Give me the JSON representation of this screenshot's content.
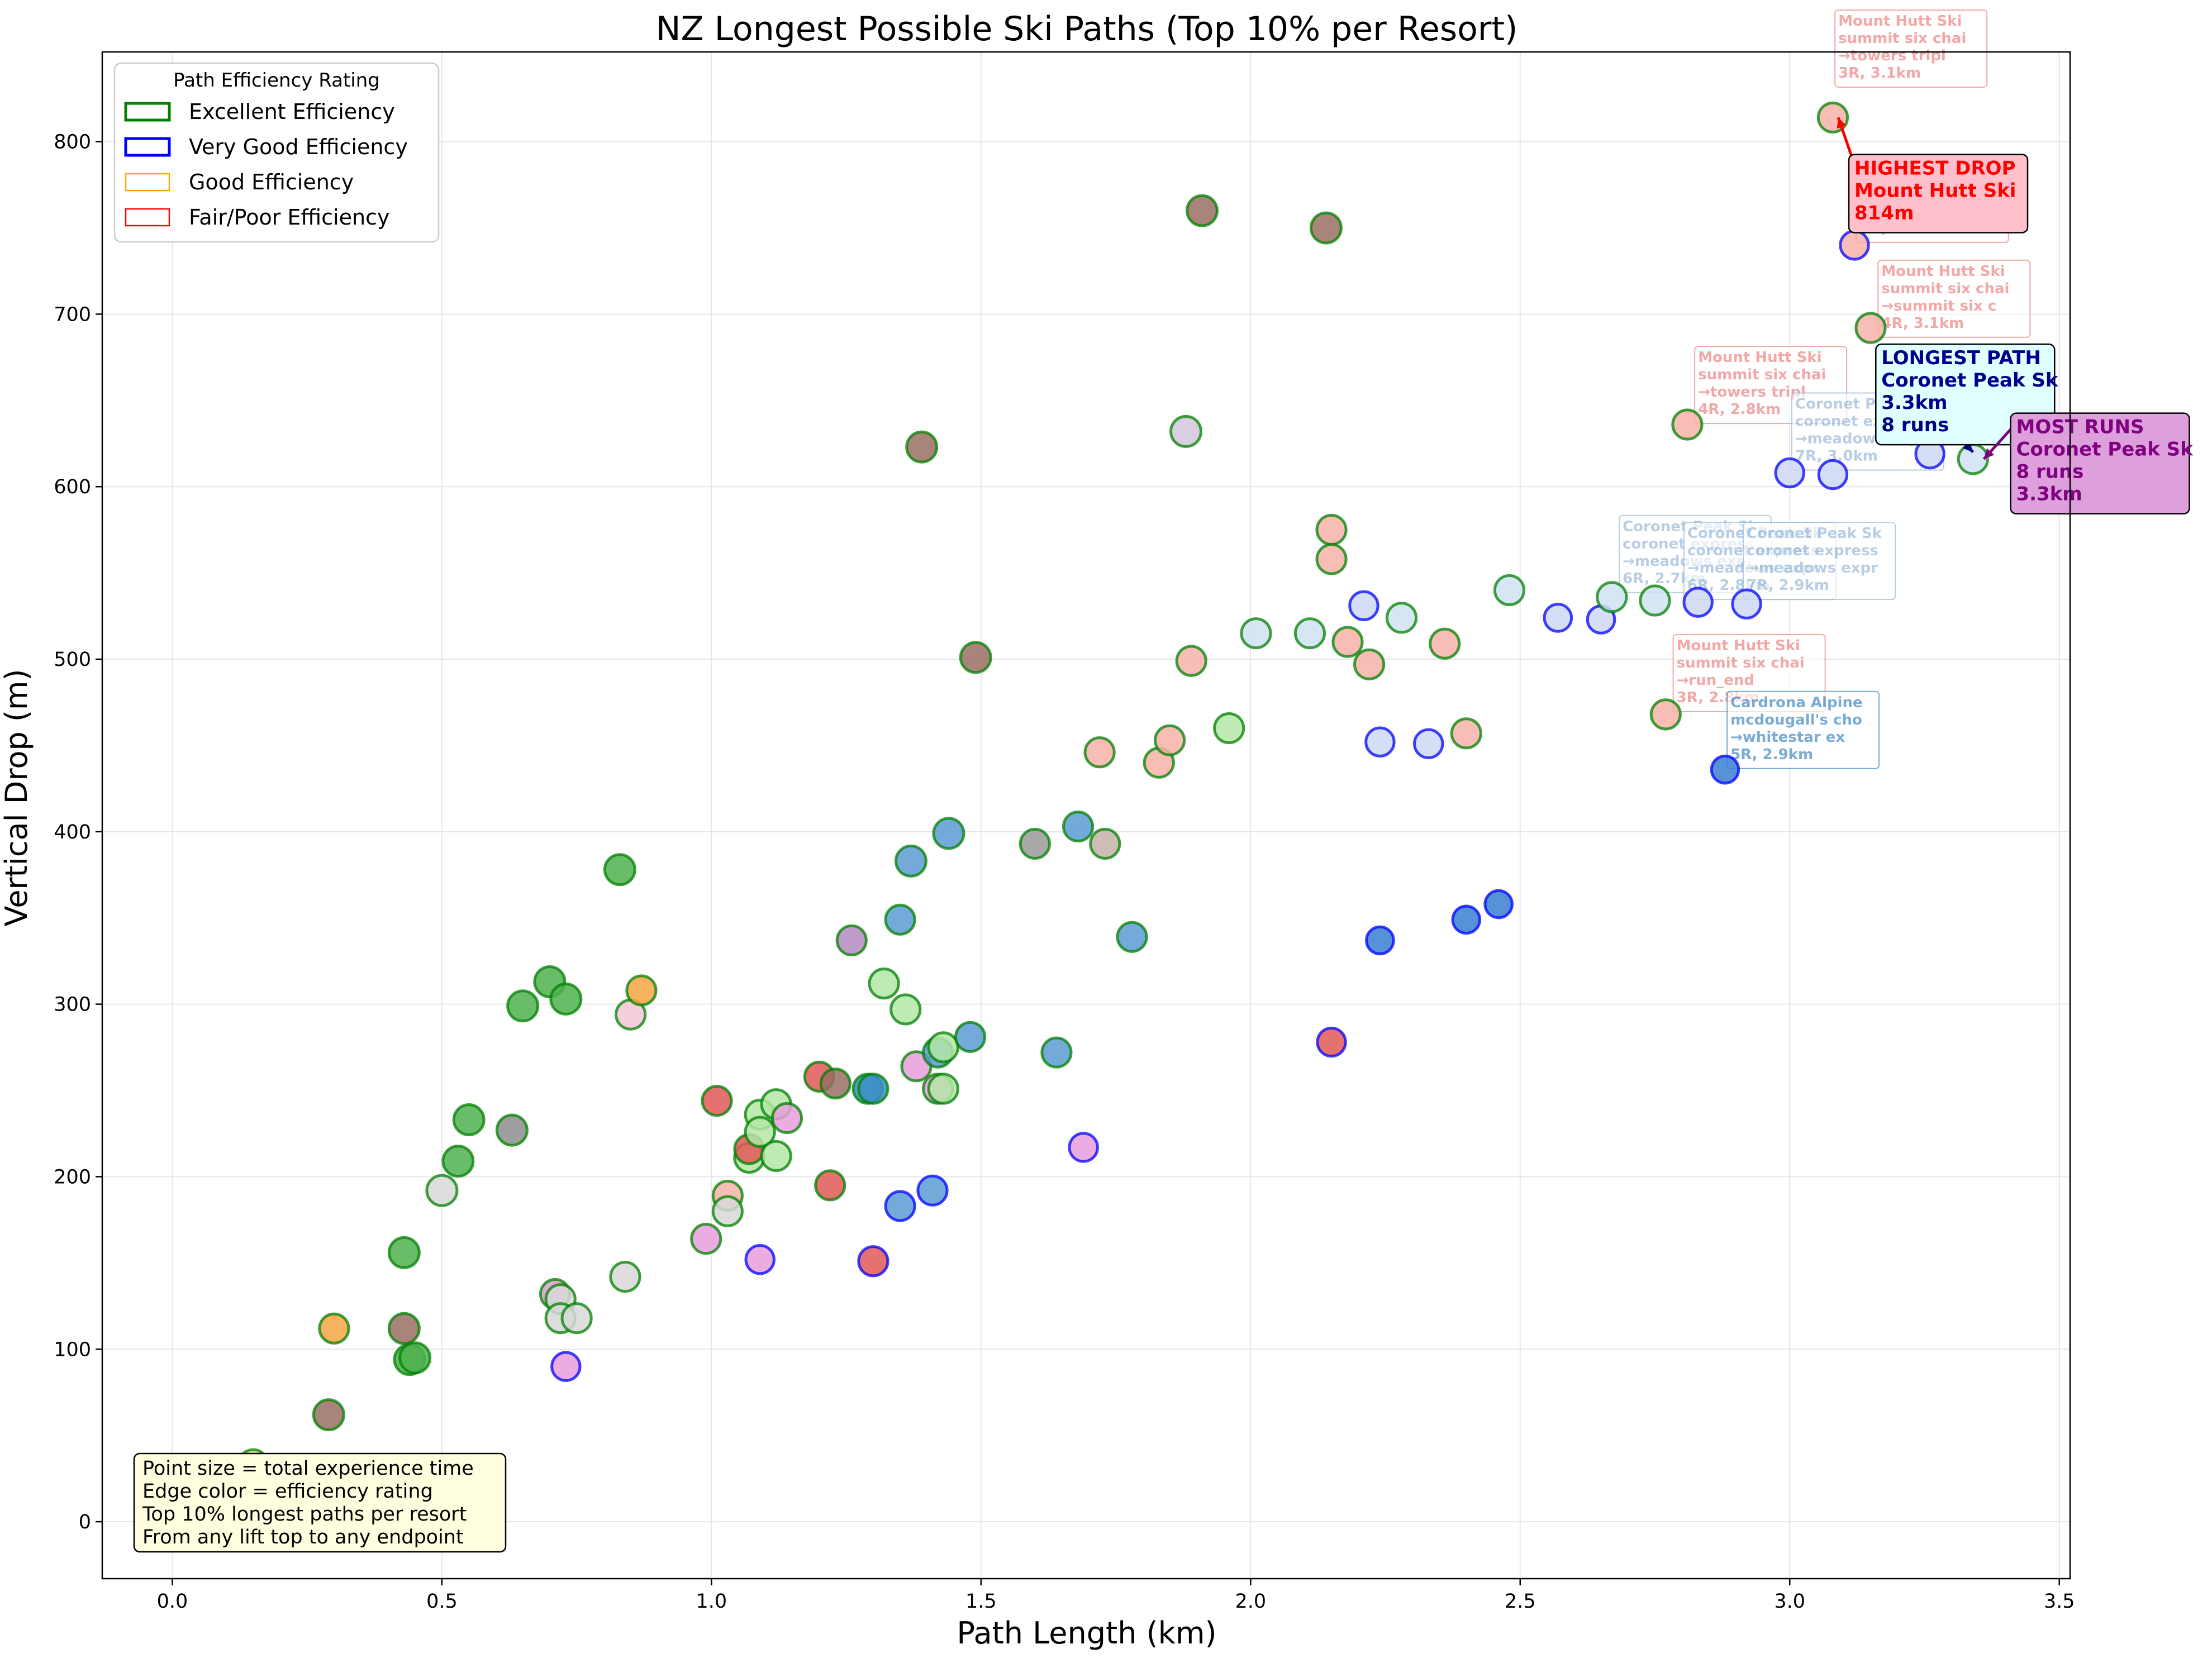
{
  "chart_data": {
    "type": "scatter",
    "title": "NZ Longest Possible Ski Paths (Top 10% per Resort)",
    "xlabel": "Path Length (km)",
    "ylabel": "Vertical Drop (m)",
    "xlim": [
      -0.13,
      3.52
    ],
    "ylim": [
      -33,
      852
    ],
    "xticks": [
      0.0,
      0.5,
      1.0,
      1.5,
      2.0,
      2.5,
      3.0,
      3.5
    ],
    "xtick_labels": [
      "0.0",
      "0.5",
      "1.0",
      "1.5",
      "2.0",
      "2.5",
      "3.0",
      "3.5"
    ],
    "yticks": [
      0,
      100,
      200,
      300,
      400,
      500,
      600,
      700,
      800
    ],
    "ytick_labels": [
      "0",
      "100",
      "200",
      "300",
      "400",
      "500",
      "600",
      "700",
      "800"
    ],
    "grid": true,
    "legend": {
      "title": "Path Efficiency Rating",
      "placement": "top-left",
      "entries": [
        {
          "label": "Excellent Efficiency",
          "color": "#008000"
        },
        {
          "label": "Very Good Efficiency",
          "color": "#0000ff"
        },
        {
          "label": "Good Efficiency",
          "color": "#ffa500"
        },
        {
          "label": "Fair/Poor Efficiency",
          "color": "#ff0000"
        }
      ]
    },
    "info_box": [
      "Point size = total experience time",
      "Edge color = efficiency rating",
      "Top 10% longest paths per resort",
      "From any lift top to any endpoint"
    ],
    "edge_colors": {
      "excellent": "#008000",
      "very_good": "#0000ff",
      "good": "#ffa500",
      "fair_poor": "#ff0000"
    },
    "points": [
      {
        "x": 0.15,
        "y": 33,
        "fill": "#e7d48a",
        "edge": "excellent",
        "size": 1.0
      },
      {
        "x": 0.29,
        "y": 62,
        "fill": "#9a6e63",
        "edge": "excellent",
        "size": 1.0
      },
      {
        "x": 0.3,
        "y": 112,
        "fill": "#f5a442",
        "edge": "excellent",
        "size": 0.9
      },
      {
        "x": 0.43,
        "y": 112,
        "fill": "#9a6e63",
        "edge": "excellent",
        "size": 1.0
      },
      {
        "x": 0.44,
        "y": 94,
        "fill": "#4fb24f",
        "edge": "excellent",
        "size": 1.0
      },
      {
        "x": 0.45,
        "y": 95,
        "fill": "#4fb24f",
        "edge": "excellent",
        "size": 1.0
      },
      {
        "x": 0.43,
        "y": 156,
        "fill": "#4fb24f",
        "edge": "excellent",
        "size": 1.0
      },
      {
        "x": 0.5,
        "y": 192,
        "fill": "#d8d8d8",
        "edge": "excellent",
        "size": 1.0
      },
      {
        "x": 0.53,
        "y": 209,
        "fill": "#4fb24f",
        "edge": "excellent",
        "size": 1.0
      },
      {
        "x": 0.55,
        "y": 233,
        "fill": "#4fb24f",
        "edge": "excellent",
        "size": 1.0
      },
      {
        "x": 0.63,
        "y": 227,
        "fill": "#8d8d8d",
        "edge": "excellent",
        "size": 1.0
      },
      {
        "x": 0.65,
        "y": 299,
        "fill": "#4fb24f",
        "edge": "excellent",
        "size": 1.0
      },
      {
        "x": 0.7,
        "y": 313,
        "fill": "#4fb24f",
        "edge": "excellent",
        "size": 1.0
      },
      {
        "x": 0.73,
        "y": 303,
        "fill": "#4fb24f",
        "edge": "excellent",
        "size": 1.0
      },
      {
        "x": 0.71,
        "y": 132,
        "fill": "#d79fc6",
        "edge": "excellent",
        "size": 0.9
      },
      {
        "x": 0.72,
        "y": 129,
        "fill": "#d8d8d8",
        "edge": "excellent",
        "size": 0.9
      },
      {
        "x": 0.72,
        "y": 118,
        "fill": "#d8d8d8",
        "edge": "excellent",
        "size": 0.9
      },
      {
        "x": 0.75,
        "y": 118,
        "fill": "#d8d8d8",
        "edge": "excellent",
        "size": 0.9
      },
      {
        "x": 0.73,
        "y": 90,
        "fill": "#e89ddc",
        "edge": "very_good",
        "size": 0.8
      },
      {
        "x": 0.83,
        "y": 378,
        "fill": "#4fb24f",
        "edge": "excellent",
        "size": 1.0
      },
      {
        "x": 0.84,
        "y": 142,
        "fill": "#d8d8d8",
        "edge": "excellent",
        "size": 0.9
      },
      {
        "x": 0.85,
        "y": 294,
        "fill": "#f5c6d8",
        "edge": "excellent",
        "size": 0.9
      },
      {
        "x": 0.87,
        "y": 308,
        "fill": "#f5a442",
        "edge": "excellent",
        "size": 0.9
      },
      {
        "x": 0.99,
        "y": 164,
        "fill": "#e89ddc",
        "edge": "excellent",
        "size": 0.9
      },
      {
        "x": 1.01,
        "y": 244,
        "fill": "#e05858",
        "edge": "excellent",
        "size": 0.9
      },
      {
        "x": 1.03,
        "y": 189,
        "fill": "#f7b2a8",
        "edge": "excellent",
        "size": 0.9
      },
      {
        "x": 1.03,
        "y": 180,
        "fill": "#d8d8d8",
        "edge": "excellent",
        "size": 0.9
      },
      {
        "x": 1.07,
        "y": 211,
        "fill": "#b4e6a6",
        "edge": "excellent",
        "size": 0.9
      },
      {
        "x": 1.07,
        "y": 216,
        "fill": "#e05858",
        "edge": "excellent",
        "size": 0.9
      },
      {
        "x": 1.09,
        "y": 236,
        "fill": "#b4e6a6",
        "edge": "excellent",
        "size": 0.9
      },
      {
        "x": 1.09,
        "y": 226,
        "fill": "#b4e6a6",
        "edge": "excellent",
        "size": 0.9
      },
      {
        "x": 1.09,
        "y": 152,
        "fill": "#e89ddc",
        "edge": "very_good",
        "size": 0.8
      },
      {
        "x": 1.12,
        "y": 242,
        "fill": "#b4e6a6",
        "edge": "excellent",
        "size": 0.9
      },
      {
        "x": 1.12,
        "y": 212,
        "fill": "#b4e6a6",
        "edge": "excellent",
        "size": 0.9
      },
      {
        "x": 1.14,
        "y": 234,
        "fill": "#e89ddc",
        "edge": "excellent",
        "size": 0.9
      },
      {
        "x": 1.2,
        "y": 258,
        "fill": "#e05858",
        "edge": "excellent",
        "size": 0.9
      },
      {
        "x": 1.22,
        "y": 195,
        "fill": "#e05858",
        "edge": "excellent",
        "size": 0.9
      },
      {
        "x": 1.23,
        "y": 254,
        "fill": "#9a6e63",
        "edge": "excellent",
        "size": 0.9
      },
      {
        "x": 1.26,
        "y": 337,
        "fill": "#b38ac0",
        "edge": "excellent",
        "size": 0.9
      },
      {
        "x": 1.29,
        "y": 251,
        "fill": "#3a8fc7",
        "edge": "excellent",
        "size": 0.9
      },
      {
        "x": 1.3,
        "y": 251,
        "fill": "#3a8fc7",
        "edge": "excellent",
        "size": 0.9
      },
      {
        "x": 1.3,
        "y": 151,
        "fill": "#e05858",
        "edge": "very_good",
        "size": 0.9
      },
      {
        "x": 1.32,
        "y": 312,
        "fill": "#b4e6a6",
        "edge": "excellent",
        "size": 0.9
      },
      {
        "x": 1.35,
        "y": 349,
        "fill": "#5a9bd2",
        "edge": "excellent",
        "size": 0.9
      },
      {
        "x": 1.35,
        "y": 183,
        "fill": "#5a9bd2",
        "edge": "very_good",
        "size": 0.9
      },
      {
        "x": 1.36,
        "y": 297,
        "fill": "#b4e6a6",
        "edge": "excellent",
        "size": 0.9
      },
      {
        "x": 1.37,
        "y": 383,
        "fill": "#5a9bd2",
        "edge": "excellent",
        "size": 1.0
      },
      {
        "x": 1.38,
        "y": 264,
        "fill": "#e89ddc",
        "edge": "excellent",
        "size": 0.9
      },
      {
        "x": 1.39,
        "y": 623,
        "fill": "#9a6e63",
        "edge": "excellent",
        "size": 1.0
      },
      {
        "x": 1.41,
        "y": 192,
        "fill": "#5a9bd2",
        "edge": "very_good",
        "size": 0.9
      },
      {
        "x": 1.42,
        "y": 272,
        "fill": "#5a9bd2",
        "edge": "excellent",
        "size": 0.9
      },
      {
        "x": 1.42,
        "y": 251,
        "fill": "#e89ddc",
        "edge": "excellent",
        "size": 0.9
      },
      {
        "x": 1.43,
        "y": 251,
        "fill": "#b4e6a6",
        "edge": "excellent",
        "size": 0.9
      },
      {
        "x": 1.43,
        "y": 275,
        "fill": "#b4e6a6",
        "edge": "excellent",
        "size": 0.9
      },
      {
        "x": 1.44,
        "y": 399,
        "fill": "#5a9bd2",
        "edge": "excellent",
        "size": 1.0
      },
      {
        "x": 1.48,
        "y": 281,
        "fill": "#5a9bd2",
        "edge": "excellent",
        "size": 0.9
      },
      {
        "x": 1.49,
        "y": 501,
        "fill": "#9a6e63",
        "edge": "excellent",
        "size": 1.0
      },
      {
        "x": 1.6,
        "y": 393,
        "fill": "#9a9a9a",
        "edge": "excellent",
        "size": 0.9
      },
      {
        "x": 1.64,
        "y": 272,
        "fill": "#5a9bd2",
        "edge": "excellent",
        "size": 0.9
      },
      {
        "x": 1.68,
        "y": 403,
        "fill": "#5a9bd2",
        "edge": "excellent",
        "size": 0.9
      },
      {
        "x": 1.69,
        "y": 217,
        "fill": "#e89ddc",
        "edge": "very_good",
        "size": 0.8
      },
      {
        "x": 1.72,
        "y": 446,
        "fill": "#f7b2a8",
        "edge": "excellent",
        "size": 0.9
      },
      {
        "x": 1.73,
        "y": 393,
        "fill": "#c5b1a8",
        "edge": "excellent",
        "size": 0.9
      },
      {
        "x": 1.78,
        "y": 339,
        "fill": "#5a9bd2",
        "edge": "excellent",
        "size": 0.9
      },
      {
        "x": 1.83,
        "y": 440,
        "fill": "#f7b2a8",
        "edge": "excellent",
        "size": 0.9
      },
      {
        "x": 1.85,
        "y": 453,
        "fill": "#f7b2a8",
        "edge": "excellent",
        "size": 0.9
      },
      {
        "x": 1.88,
        "y": 632,
        "fill": "#d3c5de",
        "edge": "excellent",
        "size": 1.0
      },
      {
        "x": 1.89,
        "y": 499,
        "fill": "#f7b2a8",
        "edge": "excellent",
        "size": 0.9
      },
      {
        "x": 1.91,
        "y": 760,
        "fill": "#9a6e63",
        "edge": "excellent",
        "size": 1.0
      },
      {
        "x": 1.96,
        "y": 460,
        "fill": "#b4e6a6",
        "edge": "excellent",
        "size": 0.9
      },
      {
        "x": 2.01,
        "y": 515,
        "fill": "#cfe2f3",
        "edge": "excellent",
        "size": 0.9
      },
      {
        "x": 2.11,
        "y": 515,
        "fill": "#cfe2f3",
        "edge": "excellent",
        "size": 0.9
      },
      {
        "x": 2.14,
        "y": 750,
        "fill": "#9a6e63",
        "edge": "excellent",
        "size": 1.0
      },
      {
        "x": 2.15,
        "y": 575,
        "fill": "#f7b2a8",
        "edge": "excellent",
        "size": 0.9
      },
      {
        "x": 2.15,
        "y": 558,
        "fill": "#f7b2a8",
        "edge": "excellent",
        "size": 0.9
      },
      {
        "x": 2.15,
        "y": 278,
        "fill": "#e05858",
        "edge": "very_good",
        "size": 0.8
      },
      {
        "x": 2.18,
        "y": 510,
        "fill": "#f7b2a8",
        "edge": "excellent",
        "size": 0.9
      },
      {
        "x": 2.21,
        "y": 531,
        "fill": "#cfd8f3",
        "edge": "very_good",
        "size": 0.8
      },
      {
        "x": 2.22,
        "y": 497,
        "fill": "#f7b2a8",
        "edge": "excellent",
        "size": 0.9
      },
      {
        "x": 2.24,
        "y": 452,
        "fill": "#cfd8f3",
        "edge": "very_good",
        "size": 0.8
      },
      {
        "x": 2.24,
        "y": 337,
        "fill": "#3a7fd2",
        "edge": "very_good",
        "size": 0.7
      },
      {
        "x": 2.28,
        "y": 524,
        "fill": "#cfe2f3",
        "edge": "excellent",
        "size": 0.9
      },
      {
        "x": 2.33,
        "y": 451,
        "fill": "#cfd8f3",
        "edge": "very_good",
        "size": 0.8
      },
      {
        "x": 2.36,
        "y": 509,
        "fill": "#f7b2a8",
        "edge": "excellent",
        "size": 0.9
      },
      {
        "x": 2.4,
        "y": 457,
        "fill": "#f7b2a8",
        "edge": "excellent",
        "size": 0.9
      },
      {
        "x": 2.4,
        "y": 349,
        "fill": "#3a7fd2",
        "edge": "very_good",
        "size": 0.7
      },
      {
        "x": 2.46,
        "y": 358,
        "fill": "#3a7fd2",
        "edge": "very_good",
        "size": 0.7
      },
      {
        "x": 2.48,
        "y": 540,
        "fill": "#cfe2f3",
        "edge": "excellent",
        "size": 0.9
      },
      {
        "x": 2.57,
        "y": 524,
        "fill": "#cfd8f3",
        "edge": "very_good",
        "size": 0.7
      },
      {
        "x": 2.65,
        "y": 523,
        "fill": "#cfd8f3",
        "edge": "very_good",
        "size": 0.7
      },
      {
        "x": 2.67,
        "y": 536,
        "fill": "#cfe2f3",
        "edge": "excellent",
        "size": 0.9
      },
      {
        "x": 2.75,
        "y": 534,
        "fill": "#cfe2f3",
        "edge": "excellent",
        "size": 0.9
      },
      {
        "x": 2.77,
        "y": 468,
        "fill": "#f7b2a8",
        "edge": "excellent",
        "size": 0.9
      },
      {
        "x": 2.81,
        "y": 636,
        "fill": "#f7b2a8",
        "edge": "excellent",
        "size": 0.9
      },
      {
        "x": 2.83,
        "y": 533,
        "fill": "#cfd8f3",
        "edge": "very_good",
        "size": 0.8
      },
      {
        "x": 2.88,
        "y": 436,
        "fill": "#3a7fd2",
        "edge": "very_good",
        "size": 0.7
      },
      {
        "x": 2.92,
        "y": 532,
        "fill": "#cfd8f3",
        "edge": "very_good",
        "size": 0.8
      },
      {
        "x": 3.0,
        "y": 608,
        "fill": "#cfd8f3",
        "edge": "very_good",
        "size": 0.8
      },
      {
        "x": 3.08,
        "y": 607,
        "fill": "#cfd8f3",
        "edge": "very_good",
        "size": 0.8
      },
      {
        "x": 3.08,
        "y": 814,
        "fill": "#f7b2a8",
        "edge": "excellent",
        "size": 0.9
      },
      {
        "x": 3.12,
        "y": 740,
        "fill": "#f7b2a8",
        "edge": "very_good",
        "size": 0.8
      },
      {
        "x": 3.15,
        "y": 692,
        "fill": "#f7b2a8",
        "edge": "excellent",
        "size": 0.9
      },
      {
        "x": 3.26,
        "y": 619,
        "fill": "#cfd8f3",
        "edge": "very_good",
        "size": 0.8
      },
      {
        "x": 3.34,
        "y": 616,
        "fill": "#cfe2f3",
        "edge": "excellent",
        "size": 0.9
      }
    ],
    "faded_labels": [
      {
        "lines": [
          "Mount Hutt Ski",
          "summit six chai",
          "→towers tripl",
          "3R, 3.1km"
        ],
        "x": 3.09,
        "y": 875,
        "color": "#f08a8a"
      },
      {
        "lines": [
          "Mount Hutt Ski",
          "summit six chai",
          "→towers tripl",
          "7R, 3.1km"
        ],
        "x": 3.13,
        "y": 785,
        "color": "#f08a8a"
      },
      {
        "lines": [
          "Mount Hutt Ski",
          "summit six chai",
          "→summit six c",
          "4R, 3.1km"
        ],
        "x": 3.17,
        "y": 730,
        "color": "#f08a8a"
      },
      {
        "lines": [
          "Mount Hutt Ski",
          "summit six chai",
          "→towers tripl",
          "4R, 2.8km"
        ],
        "x": 2.83,
        "y": 680,
        "color": "#f08a8a"
      },
      {
        "lines": [
          "Coronet Peak Sk",
          "coronet express",
          "→meadows expr",
          "7R, 3.0km"
        ],
        "x": 3.01,
        "y": 653,
        "color": "#9fbedc"
      },
      {
        "lines": [
          "Coronet Peak Sk",
          "coronet express",
          "→meadows expr",
          "6R, 2.7km"
        ],
        "x": 2.69,
        "y": 582,
        "color": "#9fbedc"
      },
      {
        "lines": [
          "Coronet Peak Sk",
          "coronet express",
          "→meadows expr",
          "6R, 2.8km"
        ],
        "x": 2.81,
        "y": 578,
        "color": "#9fbedc"
      },
      {
        "lines": [
          "Coronet Peak Sk",
          "coronet express",
          "→meadows expr",
          "7R, 2.9km"
        ],
        "x": 2.92,
        "y": 578,
        "color": "#9fbedc"
      },
      {
        "lines": [
          "Mount Hutt Ski",
          "summit six chai",
          "→run_end",
          "3R, 2.8km"
        ],
        "x": 2.79,
        "y": 513,
        "color": "#f08a8a"
      },
      {
        "lines": [
          "Cardrona Alpine",
          "mcdougall's cho",
          "→whitestar ex",
          "5R, 2.9km"
        ],
        "x": 2.89,
        "y": 480,
        "color": "#4d8fc6"
      }
    ],
    "callouts": [
      {
        "lines": [
          "HIGHEST DROP",
          "Mount Hutt Ski",
          "814m"
        ],
        "x": 3.12,
        "y": 790,
        "target_x": 3.09,
        "target_y": 814,
        "text_color": "#ff0000",
        "bg": "#ffc0cb",
        "arrow": "#ff0000"
      },
      {
        "lines": [
          "LONGEST PATH",
          "Coronet Peak Sk",
          "3.3km",
          "8 runs"
        ],
        "x": 3.17,
        "y": 680,
        "target_x": 3.34,
        "target_y": 620,
        "text_color": "#00008b",
        "bg": "#e0ffff",
        "arrow": "#00008b"
      },
      {
        "lines": [
          "MOST RUNS",
          "Coronet Peak Sk",
          "8 runs",
          "3.3km"
        ],
        "x": 3.42,
        "y": 640,
        "target_x": 3.36,
        "target_y": 616,
        "text_color": "#800080",
        "bg": "#dda0dd",
        "arrow": "#800080"
      }
    ]
  }
}
